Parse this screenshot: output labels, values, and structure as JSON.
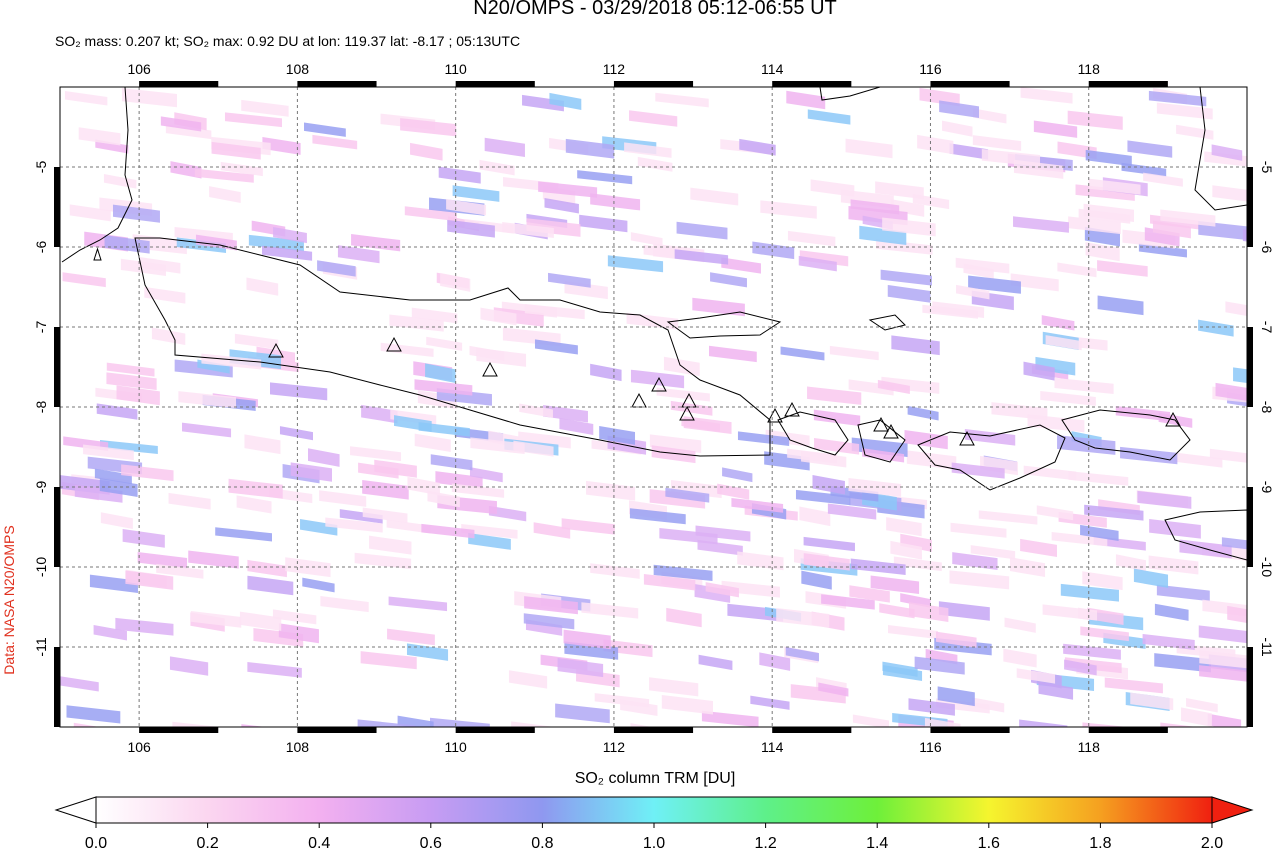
{
  "title": "N20/OMPS - 03/29/2018 05:12-06:55 UT",
  "subtitle": "SO₂ mass: 0.207 kt; SO₂ max: 0.92 DU at lon: 119.37 lat: -8.17 ; 05:13UTC",
  "credit": "Data: NASA N20/OMPS",
  "map": {
    "xlim": [
      105,
      120
    ],
    "ylim": [
      -12,
      -4
    ],
    "xticks": [
      106,
      108,
      110,
      112,
      114,
      116,
      118
    ],
    "yticks": [
      -5,
      -6,
      -7,
      -8,
      -9,
      -10,
      -11
    ]
  },
  "colorbar": {
    "label": "SO₂ column TRM [DU]",
    "range": [
      0,
      2
    ],
    "ticks": [
      {
        "value": 0,
        "label": "0.0"
      },
      {
        "value": 0.2,
        "label": "0.2"
      },
      {
        "value": 0.4,
        "label": "0.4"
      },
      {
        "value": 0.6,
        "label": "0.6"
      },
      {
        "value": 0.8,
        "label": "0.8"
      },
      {
        "value": 1,
        "label": "1.0"
      },
      {
        "value": 1.2,
        "label": "1.2"
      },
      {
        "value": 1.4,
        "label": "1.4"
      },
      {
        "value": 1.6,
        "label": "1.6"
      },
      {
        "value": 1.8,
        "label": "1.8"
      },
      {
        "value": 2,
        "label": "2.0"
      }
    ]
  }
}
